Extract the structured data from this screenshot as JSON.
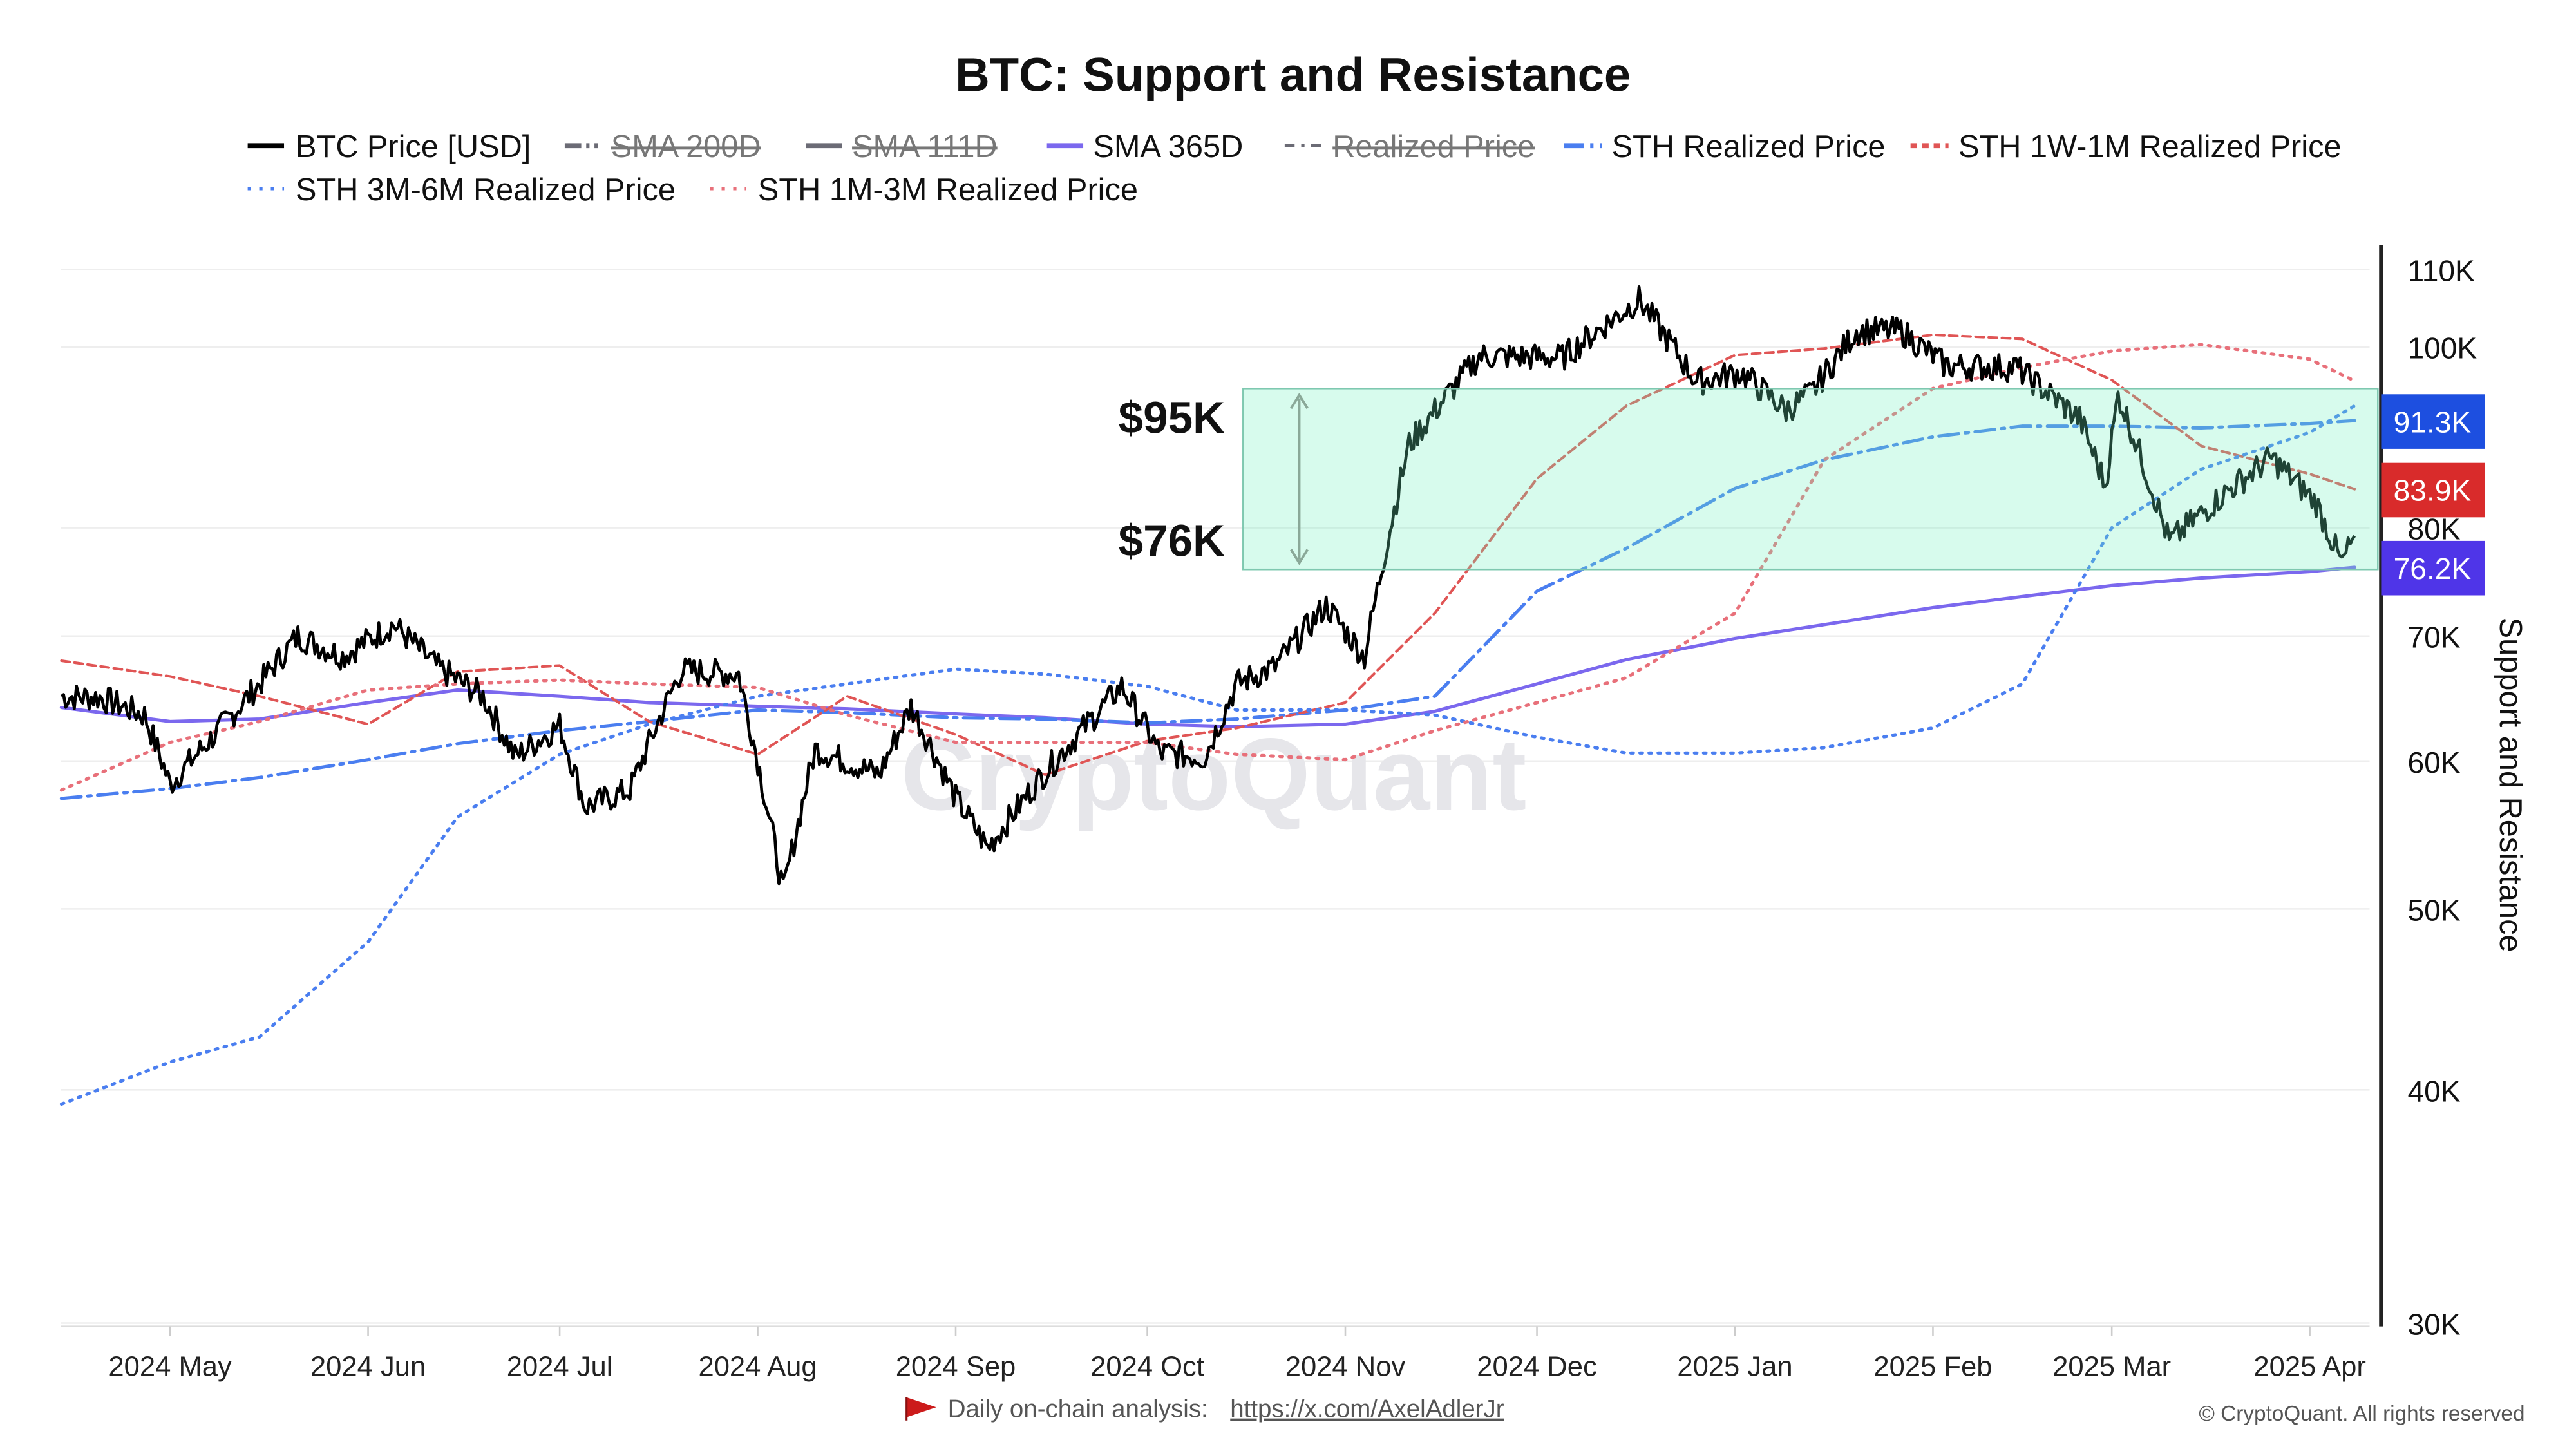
{
  "chart_data": {
    "type": "line",
    "title": "BTC: Support and Resistance",
    "ylabel": "Support and Resistance",
    "yscale": "log",
    "ylim": [
      30000,
      112000
    ],
    "grid": true,
    "legend_position": "top",
    "y_ticks": [
      "30K",
      "40K",
      "50K",
      "60K",
      "70K",
      "80K",
      "100K",
      "110K"
    ],
    "y_tick_values": [
      30000,
      40000,
      50000,
      60000,
      70000,
      80000,
      100000,
      110000
    ],
    "x_ticks": [
      "2024 May",
      "2024 Jun",
      "2024 Jul",
      "2024 Aug",
      "2024 Sep",
      "2024 Oct",
      "2024 Nov",
      "2024 Dec",
      "2025 Jan",
      "2025 Feb",
      "2025 Mar",
      "2025 Apr"
    ],
    "x_tick_dates": [
      "2024-05-01",
      "2024-06-01",
      "2024-07-01",
      "2024-08-01",
      "2024-09-01",
      "2024-10-01",
      "2024-11-01",
      "2024-12-01",
      "2025-01-01",
      "2025-02-01",
      "2025-03-01",
      "2025-04-01"
    ],
    "xlim": [
      "2024-04-14",
      "2025-04-09"
    ],
    "legend": [
      {
        "name": "BTC Price [USD]",
        "color": "#000000",
        "style": "solid",
        "visible": true
      },
      {
        "name": "SMA 200D",
        "color": "#6b6b75",
        "style": "dashdot",
        "visible": false
      },
      {
        "name": "SMA 111D",
        "color": "#6b6b75",
        "style": "solid",
        "visible": false
      },
      {
        "name": "SMA 365D",
        "color": "#7b68ee",
        "style": "solid",
        "visible": true
      },
      {
        "name": "Realized Price",
        "color": "#6b6b75",
        "style": "dashdot",
        "visible": false
      },
      {
        "name": "STH Realized Price",
        "color": "#4a7ef0",
        "style": "dashed",
        "visible": true
      },
      {
        "name": "STH 1W-1M Realized Price",
        "color": "#e05555",
        "style": "dashed",
        "visible": true
      },
      {
        "name": "STH 3M-6M Realized Price",
        "color": "#4a7ef0",
        "style": "dotted",
        "visible": true
      },
      {
        "name": "STH 1M-3M Realized Price",
        "color": "#e8707a",
        "style": "dotted",
        "visible": true
      }
    ],
    "x": [
      "2024-04-14",
      "2024-05-01",
      "2024-05-15",
      "2024-06-01",
      "2024-06-15",
      "2024-07-01",
      "2024-07-15",
      "2024-08-01",
      "2024-08-15",
      "2024-09-01",
      "2024-09-15",
      "2024-10-01",
      "2024-10-15",
      "2024-11-01",
      "2024-11-15",
      "2024-12-01",
      "2024-12-15",
      "2025-01-01",
      "2025-01-15",
      "2025-02-01",
      "2025-02-15",
      "2025-03-01",
      "2025-03-15",
      "2025-04-01",
      "2025-04-08"
    ],
    "series": [
      {
        "name": "SMA 365D",
        "values": [
          64100,
          63000,
          63200,
          64500,
          65500,
          65000,
          64500,
          64200,
          64000,
          63600,
          63300,
          62800,
          62600,
          62800,
          63800,
          66000,
          68000,
          69800,
          71000,
          72500,
          73500,
          74500,
          75200,
          75800,
          76200
        ]
      },
      {
        "name": "STH Realized Price",
        "values": [
          57300,
          58000,
          58800,
          60100,
          61300,
          62300,
          63000,
          63900,
          63700,
          63300,
          63200,
          62900,
          63200,
          63900,
          65000,
          74000,
          78000,
          84000,
          87000,
          89500,
          90700,
          90700,
          90500,
          91000,
          91300
        ]
      },
      {
        "name": "STH 1W-1M Realized Price",
        "values": [
          67900,
          66600,
          65000,
          62800,
          67000,
          67500,
          63000,
          60500,
          65000,
          62000,
          59000,
          61500,
          62500,
          64500,
          72000,
          85000,
          93000,
          99000,
          99800,
          101500,
          101000,
          96000,
          88500,
          85500,
          83900
        ]
      },
      {
        "name": "STH 3M-6M Realized Price",
        "values": [
          39300,
          41400,
          42700,
          48000,
          56000,
          60500,
          62800,
          65000,
          66000,
          67200,
          66800,
          65800,
          63900,
          63900,
          63500,
          61800,
          60600,
          60600,
          61000,
          62500,
          66000,
          80000,
          86000,
          90000,
          93000
        ]
      },
      {
        "name": "STH 1M-3M Realized Price",
        "values": [
          57900,
          61400,
          63000,
          65500,
          66000,
          66300,
          66000,
          65700,
          63500,
          61400,
          61400,
          61400,
          60500,
          60100,
          62300,
          64500,
          66500,
          72000,
          87000,
          95000,
          97500,
          99500,
          100300,
          98500,
          95900
        ]
      }
    ],
    "price": {
      "name": "BTC Price [USD]",
      "x": [
        "2024-04-14",
        "2024-04-20",
        "2024-04-27",
        "2024-05-01",
        "2024-05-08",
        "2024-05-15",
        "2024-05-21",
        "2024-05-28",
        "2024-06-05",
        "2024-06-12",
        "2024-06-19",
        "2024-06-24",
        "2024-07-01",
        "2024-07-05",
        "2024-07-12",
        "2024-07-20",
        "2024-07-29",
        "2024-08-05",
        "2024-08-10",
        "2024-08-20",
        "2024-08-25",
        "2024-09-01",
        "2024-09-06",
        "2024-09-15",
        "2024-09-27",
        "2024-10-03",
        "2024-10-10",
        "2024-10-15",
        "2024-10-21",
        "2024-10-29",
        "2024-11-04",
        "2024-11-11",
        "2024-11-22",
        "2024-12-05",
        "2024-12-17",
        "2024-12-26",
        "2025-01-02",
        "2025-01-09",
        "2025-01-13",
        "2025-01-20",
        "2025-01-27",
        "2025-02-03",
        "2025-02-14",
        "2025-02-24",
        "2025-02-28",
        "2025-03-02",
        "2025-03-10",
        "2025-03-20",
        "2025-03-26",
        "2025-04-02",
        "2025-04-06",
        "2025-04-08"
      ],
      "values": [
        65000,
        64900,
        63500,
        58300,
        62000,
        66000,
        70000,
        68300,
        71000,
        67300,
        65000,
        60300,
        62700,
        56700,
        57900,
        67100,
        66800,
        51000,
        60900,
        59000,
        64200,
        57300,
        53900,
        59200,
        65800,
        60600,
        60300,
        66000,
        67400,
        72700,
        68200,
        88700,
        98900,
        98700,
        106000,
        95800,
        96900,
        92500,
        94500,
        102000,
        102000,
        97700,
        97500,
        91500,
        84300,
        94300,
        78600,
        84200,
        87200,
        82500,
        76500,
        79200
      ]
    },
    "annotations": {
      "zone": {
        "upper": 95000,
        "lower": 76000,
        "start": "2024-10-16",
        "upper_label": "$95K",
        "lower_label": "$76K",
        "color": "#6ef0be"
      },
      "badges": [
        {
          "text": "91.3K",
          "value": 91300,
          "color": "#1d4fe0"
        },
        {
          "text": "83.9K",
          "value": 83900,
          "color": "#d92b2b"
        },
        {
          "text": "76.2K",
          "value": 76200,
          "color": "#4f35e8"
        }
      ]
    }
  },
  "watermark": "CryptoQuant",
  "footer": {
    "analysis_label": "Daily on-chain analysis:",
    "analysis_link": "https://x.com/AxelAdlerJr",
    "copyright": "© CryptoQuant. All rights reserved"
  }
}
